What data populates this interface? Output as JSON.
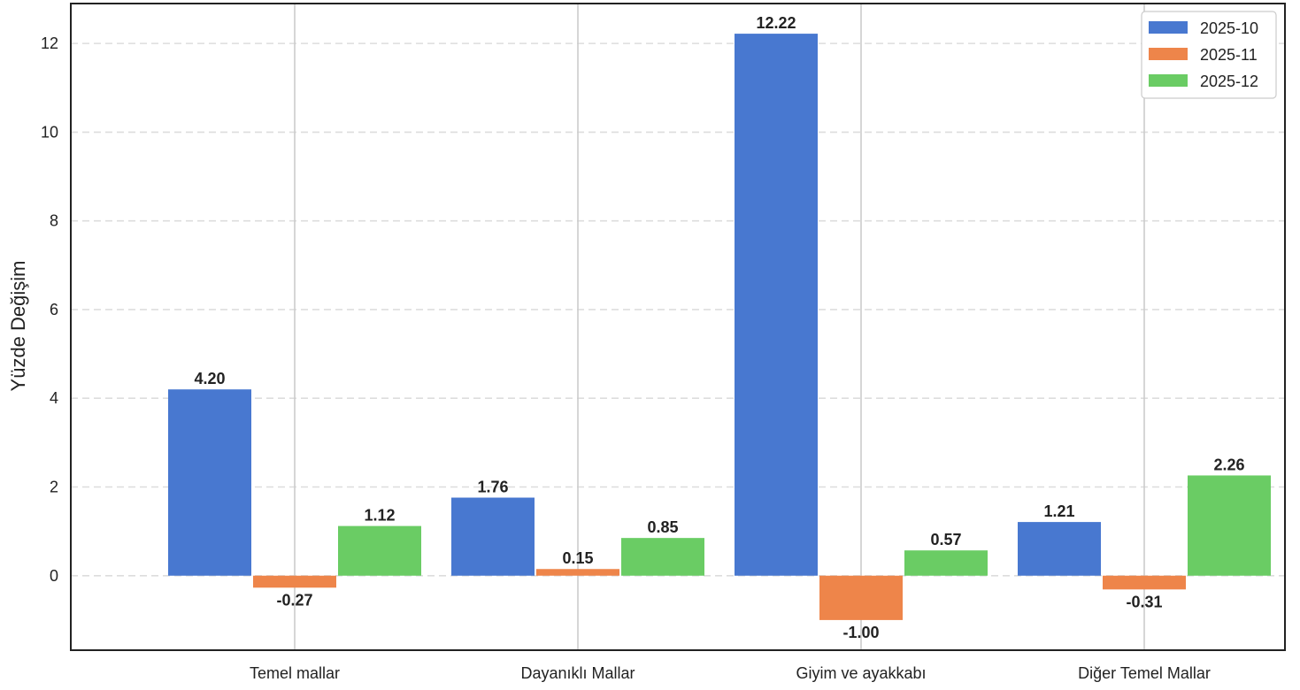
{
  "chart_data": {
    "type": "bar",
    "ylabel": "Yüzde Değişim",
    "xlabel": "",
    "title": "",
    "categories": [
      "Temel mallar",
      "Dayanıklı Mallar",
      "Giyim ve ayakkabı",
      "Diğer Temel Mallar"
    ],
    "series": [
      {
        "name": "2025-10",
        "color": "#4878d0",
        "values": [
          4.2,
          1.76,
          12.22,
          1.21
        ],
        "labels": [
          "4.20",
          "1.76",
          "12.22",
          "1.21"
        ]
      },
      {
        "name": "2025-11",
        "color": "#ee854a",
        "values": [
          -0.27,
          0.15,
          -1.0,
          -0.31
        ],
        "labels": [
          "-0.27",
          "0.15",
          "-1.00",
          "-0.31"
        ]
      },
      {
        "name": "2025-12",
        "color": "#6acc64",
        "values": [
          1.12,
          0.85,
          0.57,
          2.26
        ],
        "labels": [
          "1.12",
          "0.85",
          "0.57",
          "2.26"
        ]
      }
    ],
    "ylim": [
      -1.68,
      12.9
    ],
    "yticks": [
      0,
      2,
      4,
      6,
      8,
      10,
      12
    ],
    "grid": "horizontal dashed",
    "legend_position": "top-right"
  }
}
